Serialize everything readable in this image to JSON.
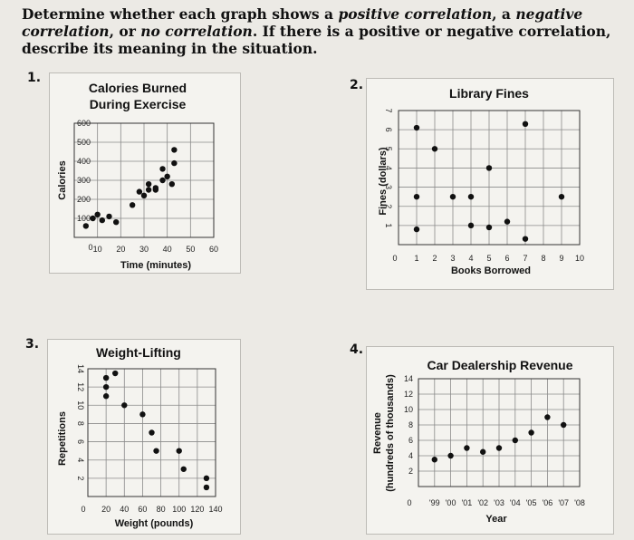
{
  "instructions": {
    "p1": "Determine whether each graph shows a ",
    "positive": "positive correlation",
    "p2": ", a ",
    "negative": "negative correlation",
    "p3": ", or ",
    "none": "no correlation",
    "p4": ". If there is a positive or negative correlation, describe its meaning in the situation."
  },
  "chart_data": [
    {
      "number": "1.",
      "type": "scatter",
      "title_lines": [
        "Calories Burned",
        "During Exercise"
      ],
      "xlabel": "Time (minutes)",
      "ylabel": "Calories",
      "xlim": [
        0,
        60
      ],
      "ylim": [
        0,
        600
      ],
      "xticks": [
        "10",
        "20",
        "30",
        "40",
        "50",
        "60"
      ],
      "yticks": [
        "100",
        "200",
        "300",
        "400",
        "500",
        "600"
      ],
      "origin_label": "0",
      "x": [
        5,
        8,
        10,
        12,
        15,
        18,
        25,
        28,
        30,
        32,
        32,
        35,
        35,
        38,
        38,
        40,
        42,
        43,
        43
      ],
      "y": [
        60,
        100,
        120,
        90,
        110,
        80,
        170,
        240,
        220,
        250,
        280,
        250,
        260,
        300,
        360,
        320,
        280,
        390,
        460
      ]
    },
    {
      "number": "2.",
      "type": "scatter",
      "title_lines": [
        "Library Fines"
      ],
      "xlabel": "Books Borrowed",
      "ylabel": "Fines (dollars)",
      "xlim": [
        0,
        10
      ],
      "ylim": [
        0,
        7
      ],
      "xticks": [
        "1",
        "2",
        "3",
        "4",
        "5",
        "6",
        "7",
        "8",
        "9",
        "10"
      ],
      "yticks": [
        "1",
        "2",
        "3",
        "4",
        "5",
        "6",
        "7"
      ],
      "origin_label": "0",
      "x": [
        1,
        1,
        1,
        2,
        3,
        4,
        4,
        5,
        5,
        6,
        7,
        7,
        9
      ],
      "y": [
        6.1,
        2.5,
        0.8,
        5,
        2.5,
        1,
        2.5,
        4,
        0.9,
        1.2,
        6.3,
        0.3,
        2.5
      ]
    },
    {
      "number": "3.",
      "type": "scatter",
      "title_lines": [
        "Weight-Lifting"
      ],
      "xlabel": "Weight (pounds)",
      "ylabel": "Repetitions",
      "xlim": [
        0,
        140
      ],
      "ylim": [
        0,
        14
      ],
      "xticks": [
        "20",
        "40",
        "60",
        "80",
        "100",
        "120",
        "140"
      ],
      "yticks": [
        "2",
        "4",
        "6",
        "8",
        "10",
        "12",
        "14"
      ],
      "origin_label": "0",
      "x": [
        20,
        20,
        20,
        30,
        40,
        60,
        70,
        75,
        100,
        105,
        130,
        130
      ],
      "y": [
        13,
        12,
        11,
        13.5,
        10,
        9,
        7,
        5,
        5,
        3,
        1,
        2
      ]
    },
    {
      "number": "4.",
      "type": "scatter",
      "title_lines": [
        "Car Dealership Revenue"
      ],
      "xlabel": "Year",
      "ylabel_lines": [
        "Revenue",
        "(hundreds of thousands)"
      ],
      "xlim": [
        0,
        10
      ],
      "ylim": [
        0,
        14
      ],
      "xticks": [
        "'99",
        "'00",
        "'01",
        "'02",
        "'03",
        "'04",
        "'05",
        "'06",
        "'07",
        "'08"
      ],
      "yticks": [
        "2",
        "4",
        "6",
        "8",
        "10",
        "12",
        "14"
      ],
      "origin_label": "0",
      "x": [
        1,
        2,
        3,
        4,
        5,
        6,
        7,
        8,
        9
      ],
      "y": [
        3.5,
        4,
        5,
        4.5,
        5,
        6,
        7,
        9,
        8
      ]
    }
  ]
}
